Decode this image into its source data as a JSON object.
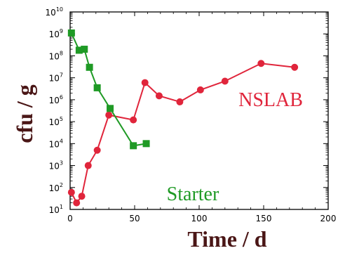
{
  "chart_data": {
    "type": "line",
    "xlabel": "Time / d",
    "ylabel": "cfu / g",
    "xlim": [
      0,
      200
    ],
    "ylim_log10": [
      1,
      10
    ],
    "yscale": "log",
    "x_ticks": [
      "0",
      "50",
      "100",
      "150",
      "200"
    ],
    "y_tick_exponents": [
      "1",
      "2",
      "3",
      "4",
      "5",
      "6",
      "7",
      "8",
      "9",
      "10"
    ],
    "y_tick_base": "10",
    "grid": false,
    "series": [
      {
        "name": "NSLAB",
        "color": "#e0253b",
        "marker": "circle",
        "points": [
          {
            "x": 1,
            "y": 60
          },
          {
            "x": 5,
            "y": 20
          },
          {
            "x": 9,
            "y": 40
          },
          {
            "x": 14,
            "y": 1000
          },
          {
            "x": 21,
            "y": 5000
          },
          {
            "x": 30,
            "y": 200000
          },
          {
            "x": 49,
            "y": 120000
          },
          {
            "x": 58,
            "y": 6000000
          },
          {
            "x": 69,
            "y": 1500000
          },
          {
            "x": 85,
            "y": 800000
          },
          {
            "x": 101,
            "y": 2800000
          },
          {
            "x": 120,
            "y": 7000000
          },
          {
            "x": 148,
            "y": 45000000
          },
          {
            "x": 174,
            "y": 30000000
          }
        ]
      },
      {
        "name": "Starter",
        "color": "#1f9a25",
        "marker": "square",
        "points": [
          {
            "x": 1,
            "y": 1100000000
          },
          {
            "x": 7,
            "y": 180000000
          },
          {
            "x": 11,
            "y": 200000000
          },
          {
            "x": 15,
            "y": 30000000
          },
          {
            "x": 21,
            "y": 3500000
          },
          {
            "x": 31,
            "y": 400000
          },
          {
            "x": 49,
            "y": 8000
          },
          {
            "x": 59,
            "y": 10000
          }
        ]
      }
    ]
  }
}
